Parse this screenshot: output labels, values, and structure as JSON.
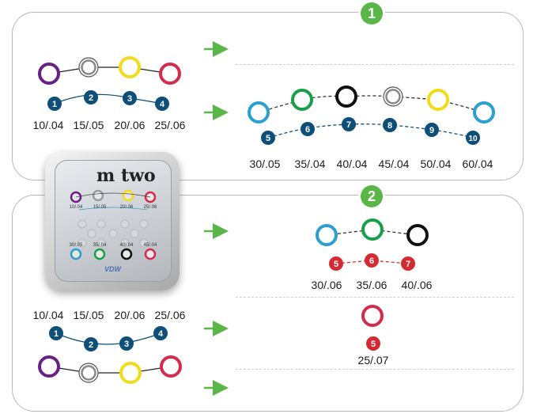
{
  "section1": {
    "badge": "1",
    "left_file_sizes": [
      "10/.04",
      "15/.05",
      "20/.06",
      "25/.06"
    ],
    "left_sequence_numbers": [
      "1",
      "2",
      "3",
      "4"
    ],
    "right_sequence_numbers": [
      "5",
      "6",
      "7",
      "8",
      "9",
      "10"
    ],
    "right_file_sizes": [
      "30/.05",
      "35/.04",
      "40/.04",
      "45/.04",
      "50/.04",
      "60/.04"
    ]
  },
  "section2": {
    "badge": "2",
    "left_file_sizes": [
      "10/.04",
      "15/.05",
      "20/.06",
      "25/.06"
    ],
    "left_sequence_numbers": [
      "1",
      "2",
      "3",
      "4"
    ],
    "option_a_numbers": [
      "5",
      "6",
      "7"
    ],
    "option_a_file_sizes": [
      "30/.06",
      "35/.06",
      "40/.06"
    ],
    "option_b_number": "5",
    "option_b_file_size": "25/.07"
  },
  "device": {
    "logo": "m two",
    "brand": "VDW",
    "slot_labels": [
      "10/.04",
      "15/.05",
      "20/.06",
      "25/.06",
      "30/.05",
      "35/.04",
      "40/.04",
      "45/.04"
    ]
  },
  "colors": {
    "badge_green": "#5bb648",
    "arrow_green": "#5bb648",
    "number_blue": "#0d4f78",
    "number_red": "#d42b32",
    "ring_purple": "#6a1f85",
    "ring_white": "#ffffff",
    "ring_yellow": "#f2dc1a",
    "ring_red": "#d42b4b",
    "ring_blue": "#2a9fd0",
    "ring_green": "#16a04a",
    "ring_black": "#111111"
  },
  "icons": [
    "arrow-right-icon",
    "color-ring-icon",
    "numbered-dot-icon"
  ]
}
